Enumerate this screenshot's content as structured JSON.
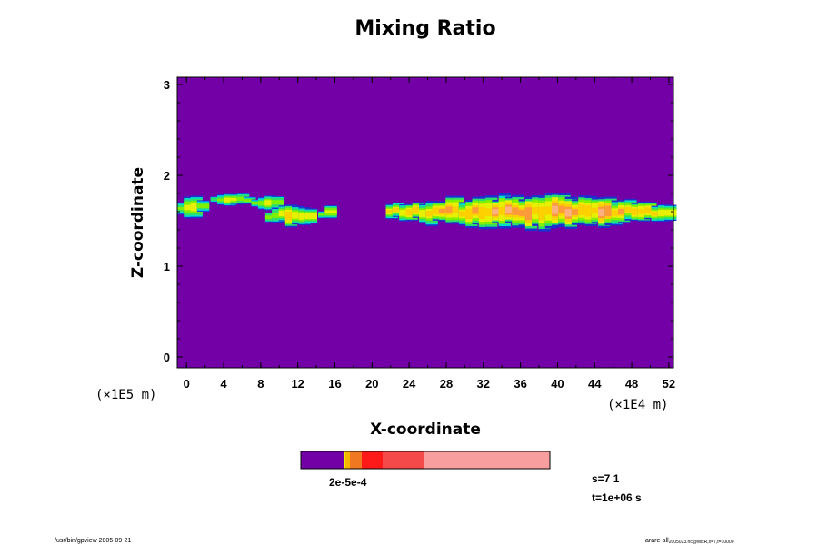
{
  "chart_data": {
    "type": "heatmap",
    "title": "Mixing Ratio",
    "xlabel": "X-coordinate",
    "ylabel": "Z-coordinate",
    "x_unit": "(×1E4 m)",
    "y_unit": "(×1E5 m)",
    "xlim": [
      -1,
      52.5
    ],
    "ylim": [
      -0.12,
      3.08
    ],
    "x_ticks": [
      "0",
      "4",
      "8",
      "12",
      "16",
      "20",
      "24",
      "28",
      "32",
      "36",
      "40",
      "44",
      "48",
      "52"
    ],
    "y_ticks": [
      "0",
      "1",
      "2",
      "3"
    ],
    "background_color": "#7300a6",
    "colorbar": {
      "colors": [
        "#7300a6",
        "#f0ef00",
        "#f7b500",
        "#f07820",
        "#ff1a1a",
        "#f54a4a",
        "#f99e9e"
      ],
      "label": "2e-5e-4"
    },
    "field_blobs": [
      {
        "x0": -1.0,
        "x1": 1.2,
        "zc": 1.66,
        "thick": 0.12,
        "peak": 0.35
      },
      {
        "x0": 2.6,
        "x1": 6.2,
        "zc": 1.72,
        "thick": 0.07,
        "peak": 0.3
      },
      {
        "x0": 7.0,
        "x1": 9.5,
        "zc": 1.7,
        "thick": 0.09,
        "peak": 0.3
      },
      {
        "x0": 8.5,
        "x1": 13.5,
        "zc": 1.56,
        "thick": 0.12,
        "peak": 0.45
      },
      {
        "x0": 14.2,
        "x1": 15.4,
        "zc": 1.58,
        "thick": 0.07,
        "peak": 0.3
      },
      {
        "x0": 21.5,
        "x1": 52.0,
        "zc": 1.6,
        "thick": 0.17,
        "peak": 0.7
      }
    ]
  },
  "info": {
    "s_label": "s=7 1",
    "t_label": "t=1e+06 s"
  },
  "footer": {
    "left": "/usr/bin/gpview 2005-09-21",
    "right_main": "arare-all",
    "right_sub": "2005023.nc@MixR,x=7,t=10000"
  }
}
